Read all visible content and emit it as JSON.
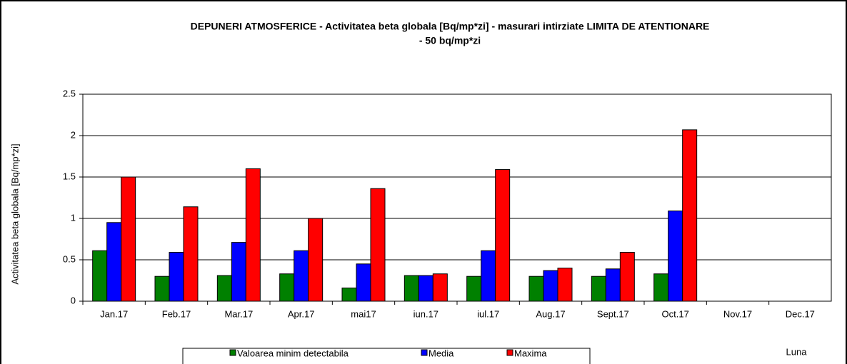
{
  "chart_data": {
    "type": "bar",
    "title": [
      "DEPUNERI ATMOSFERICE - Activitatea beta globala [Bq/mp*zi] - masurari intirziate  LIMITA DE ATENTIONARE",
      "- 50 bq/mp*zi"
    ],
    "y_label": "Activitatea beta globala  [Bq/mp*zi]",
    "x_label": "Luna",
    "categories": [
      "Jan.17",
      "Feb.17",
      "Mar.17",
      "Apr.17",
      "mai17",
      "iun.17",
      "iul.17",
      "Aug.17",
      "Sept.17",
      "Oct.17",
      "Nov.17",
      "Dec.17"
    ],
    "series": [
      {
        "name": "Valoarea minim detectabila",
        "color": "#008000",
        "values": [
          0.61,
          0.3,
          0.31,
          0.33,
          0.16,
          0.31,
          0.3,
          0.3,
          0.3,
          0.33,
          null,
          null
        ]
      },
      {
        "name": "Media",
        "color": "#0000ff",
        "values": [
          0.95,
          0.59,
          0.71,
          0.61,
          0.45,
          0.31,
          0.61,
          0.37,
          0.39,
          1.09,
          null,
          null
        ]
      },
      {
        "name": "Maxima",
        "color": "#ff0000",
        "values": [
          1.5,
          1.14,
          1.6,
          1.0,
          1.36,
          0.33,
          1.59,
          0.4,
          0.59,
          2.07,
          null,
          null
        ]
      }
    ],
    "ylim": [
      0,
      2.5
    ],
    "yticks": [
      0,
      0.5,
      1,
      1.5,
      2,
      2.5
    ],
    "grid": true,
    "legend": "bottom"
  }
}
